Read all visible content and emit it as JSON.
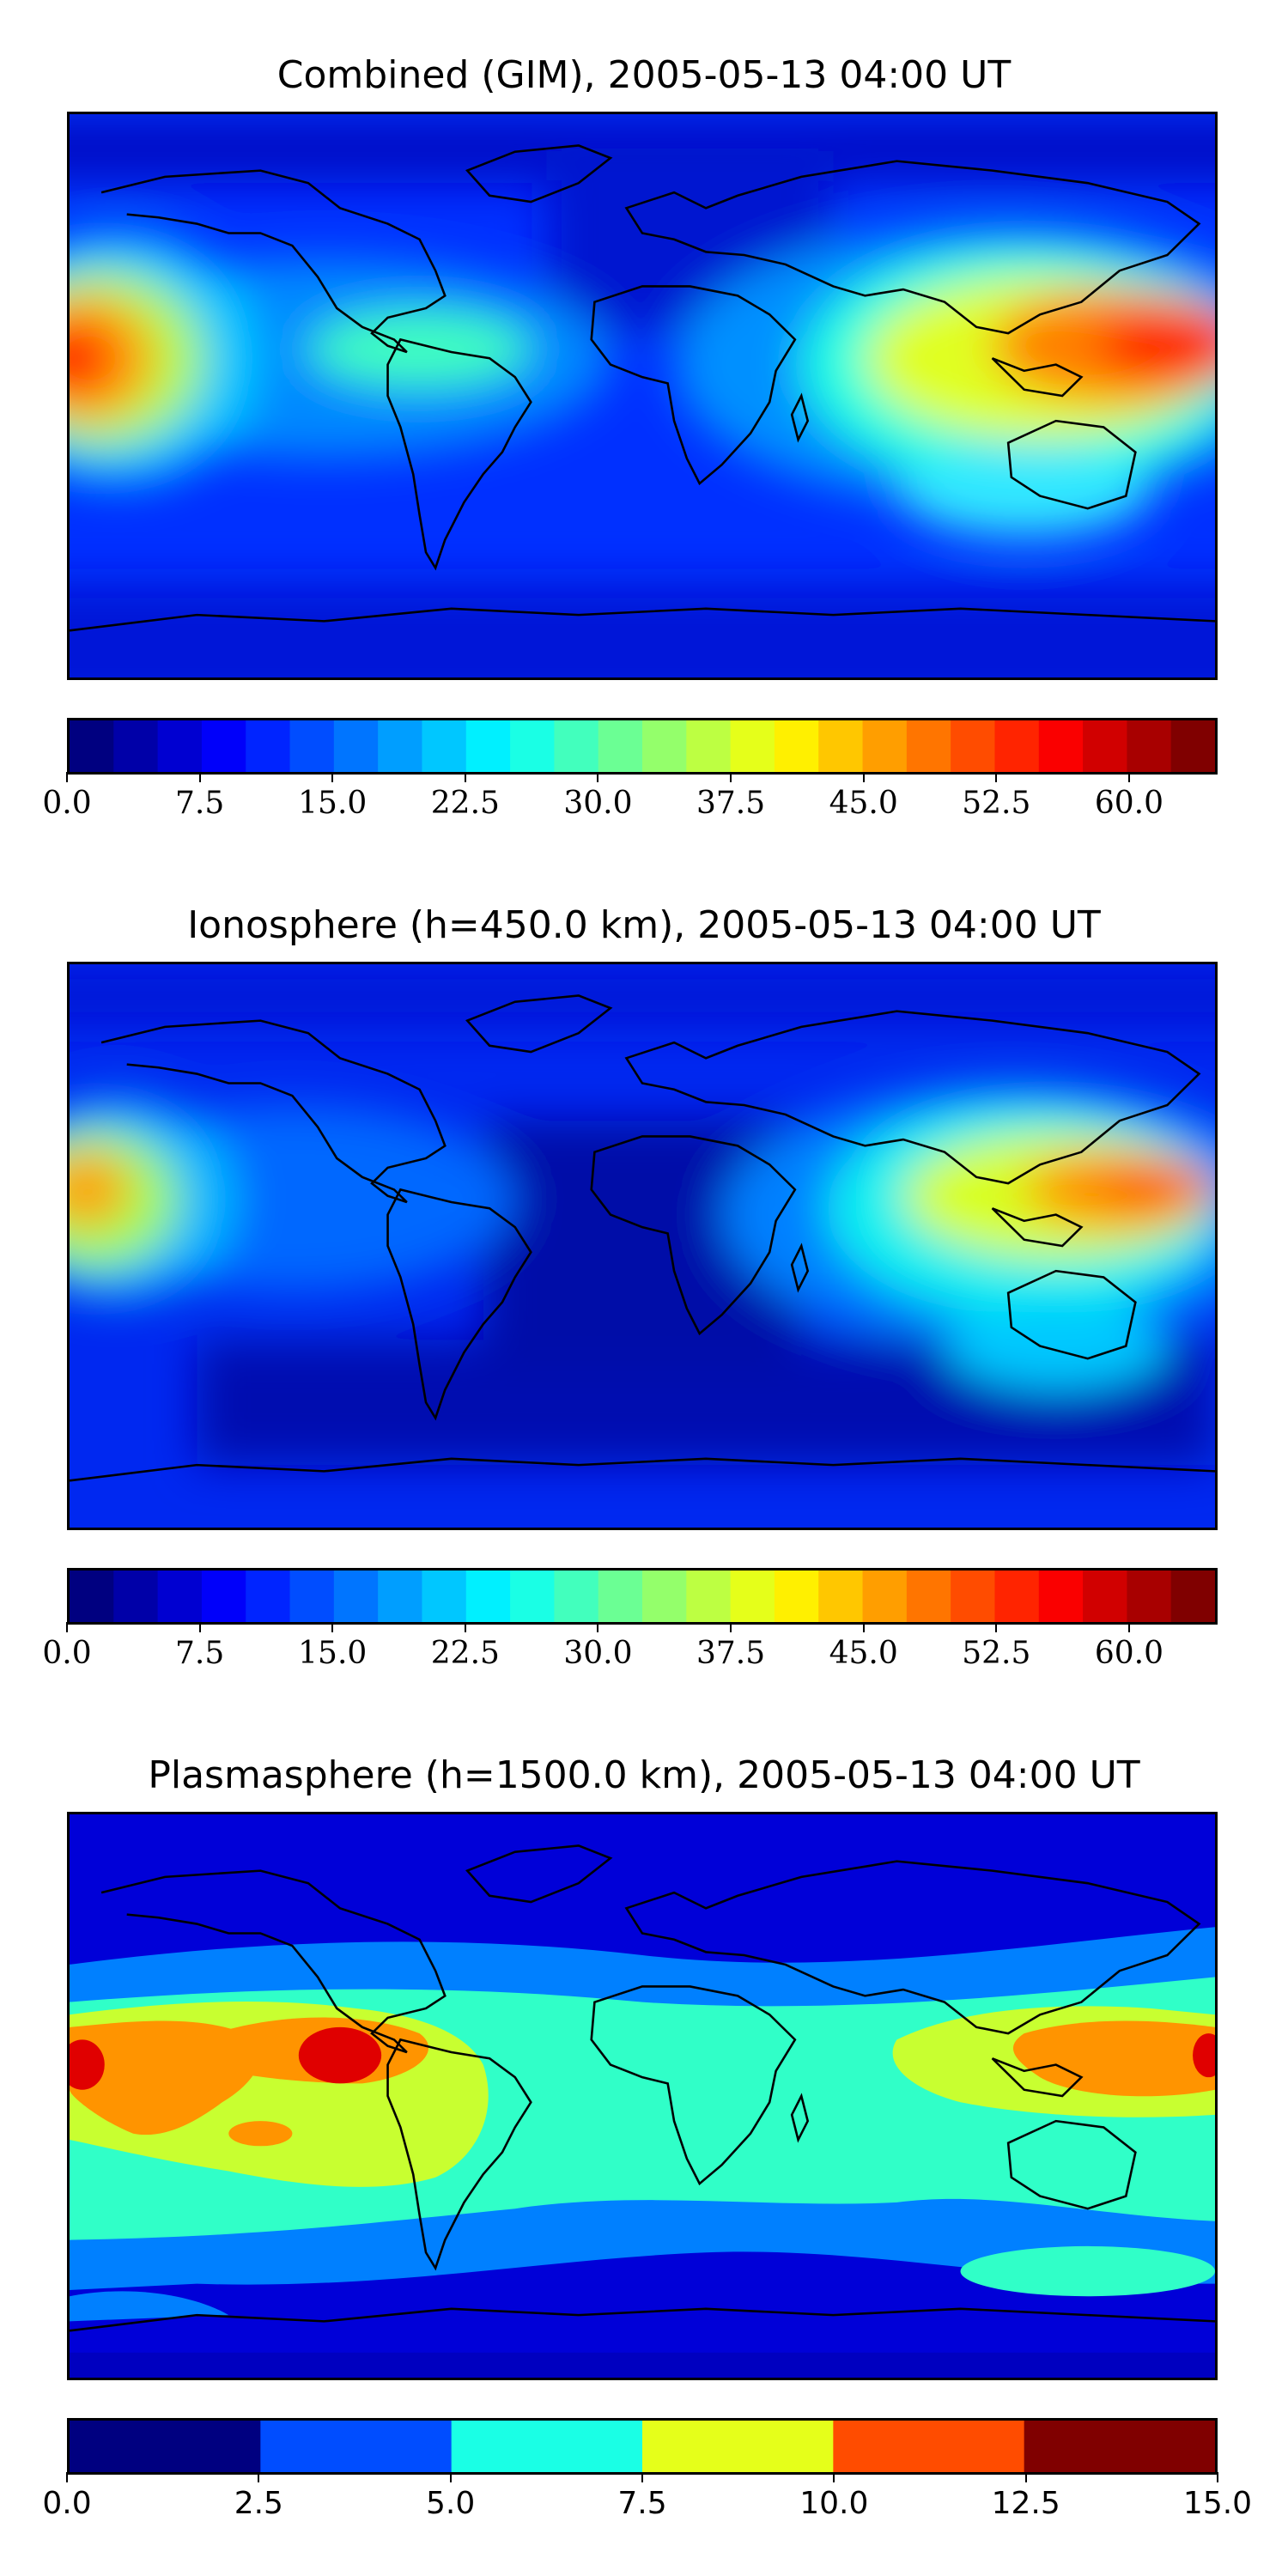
{
  "chart_data": [
    {
      "type": "heatmap",
      "title": "Combined (GIM), 2005-05-13 04:00 UT",
      "colorbar": {
        "range": [
          0,
          65
        ],
        "levels": 26,
        "tick_labels": [
          "0.0",
          "7.5",
          "15.0",
          "22.5",
          "30.0",
          "37.5",
          "45.0",
          "52.5",
          "60.0"
        ],
        "tick_values": [
          0,
          7.5,
          15,
          22.5,
          30,
          37.5,
          45,
          52.5,
          60
        ],
        "colormap": "jet"
      },
      "projection": "plate-carree",
      "features": "coastlines",
      "maxima": [
        {
          "lon": -175,
          "lat": 0,
          "value": 62
        },
        {
          "lon": 165,
          "lat": 2,
          "value": 62
        }
      ]
    },
    {
      "type": "heatmap",
      "title": "Ionosphere  (h=450.0 km), 2005-05-13 04:00 UT",
      "colorbar": {
        "range": [
          0,
          65
        ],
        "levels": 26,
        "tick_labels": [
          "0.0",
          "7.5",
          "15.0",
          "22.5",
          "30.0",
          "37.5",
          "45.0",
          "52.5",
          "60.0"
        ],
        "tick_values": [
          0,
          7.5,
          15,
          22.5,
          30,
          37.5,
          45,
          52.5,
          60
        ],
        "colormap": "jet"
      },
      "projection": "plate-carree",
      "features": "coastlines",
      "maxima": [
        {
          "lon": -175,
          "lat": 0,
          "value": 47
        },
        {
          "lon": 165,
          "lat": 2,
          "value": 52
        }
      ]
    },
    {
      "type": "heatmap",
      "title": "Plasmasphere (h=1500.0 km), 2005-05-13 04:00 UT",
      "colorbar": {
        "range": [
          0,
          15
        ],
        "levels": 6,
        "tick_labels": [
          "0.0",
          "2.5",
          "5.0",
          "7.5",
          "10.0",
          "12.5",
          "15.0"
        ],
        "tick_values": [
          0,
          2.5,
          5,
          7.5,
          10,
          12.5,
          15
        ],
        "colormap": "jet"
      },
      "projection": "plate-carree",
      "features": "coastlines",
      "maxima": [
        {
          "lon": -175,
          "lat": -2,
          "value": 13
        },
        {
          "lon": -100,
          "lat": 8,
          "value": 13
        },
        {
          "lon": 175,
          "lat": 2,
          "value": 13
        }
      ]
    }
  ]
}
